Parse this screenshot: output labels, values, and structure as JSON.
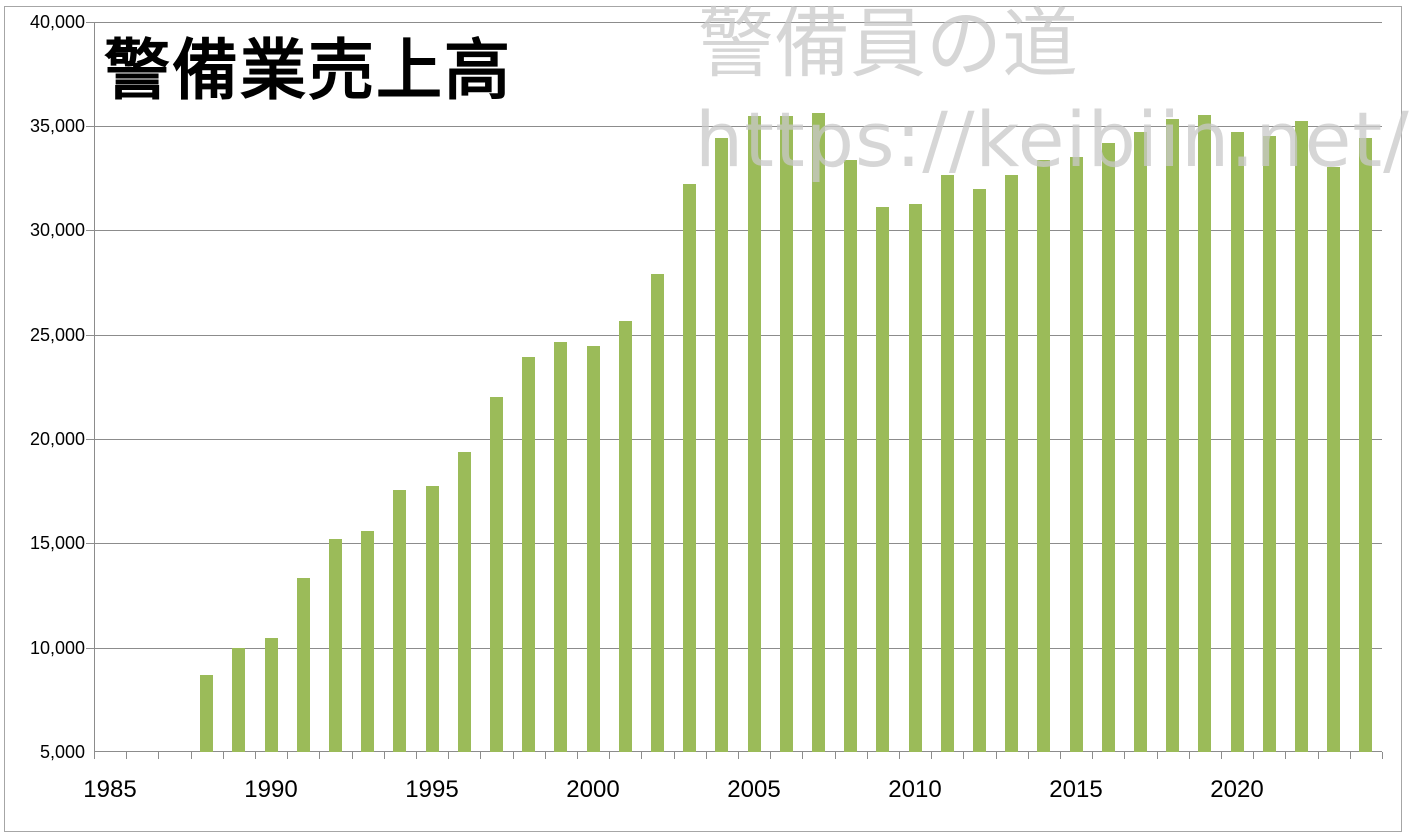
{
  "chart_data": {
    "type": "bar",
    "title": "警備業売上高",
    "xlabel": "",
    "ylabel": "",
    "ylim": [
      5000,
      40000
    ],
    "grid": true,
    "legend": null,
    "bar_color": "#9bbb59",
    "categories": [
      1985,
      1986,
      1987,
      1988,
      1989,
      1990,
      1991,
      1992,
      1993,
      1994,
      1995,
      1996,
      1997,
      1998,
      1999,
      2000,
      2001,
      2002,
      2003,
      2004,
      2005,
      2006,
      2007,
      2008,
      2009,
      2010,
      2011,
      2012,
      2013,
      2014,
      2015,
      2016,
      2017,
      2018,
      2019,
      2020,
      2021,
      2022,
      2023,
      2024
    ],
    "values": [
      null,
      null,
      null,
      8690,
      9990,
      10460,
      13340,
      15200,
      15600,
      17560,
      17750,
      19390,
      22020,
      23940,
      24660,
      24460,
      25660,
      27910,
      32230,
      34430,
      35490,
      35490,
      35630,
      33380,
      31130,
      31270,
      32660,
      31990,
      32660,
      33380,
      33520,
      34190,
      34720,
      35340,
      35540,
      34720,
      34530,
      35250,
      33040,
      34430
    ],
    "y_ticks": [
      "5,000",
      "10,000",
      "15,000",
      "20,000",
      "25,000",
      "30,000",
      "35,000",
      "40,000"
    ],
    "y_tick_values": [
      5000,
      10000,
      15000,
      20000,
      25000,
      30000,
      35000,
      40000
    ],
    "x_tick_labels": [
      "1985",
      "1990",
      "1995",
      "2000",
      "2005",
      "2010",
      "2015",
      "2020"
    ],
    "annotations": [
      "警備員の道",
      "https://keibiin.net/"
    ]
  },
  "title": "警備業売上高",
  "watermark": {
    "line1": "警備員の道",
    "line2": "https://keibiin.net/"
  },
  "y_axis": {
    "labels": [
      "40,000",
      "35,000",
      "30,000",
      "25,000",
      "20,000",
      "15,000",
      "10,000",
      "5,000"
    ]
  },
  "x_axis": {
    "labels": [
      "1985",
      "1990",
      "1995",
      "2000",
      "2005",
      "2010",
      "2015",
      "2020"
    ]
  }
}
